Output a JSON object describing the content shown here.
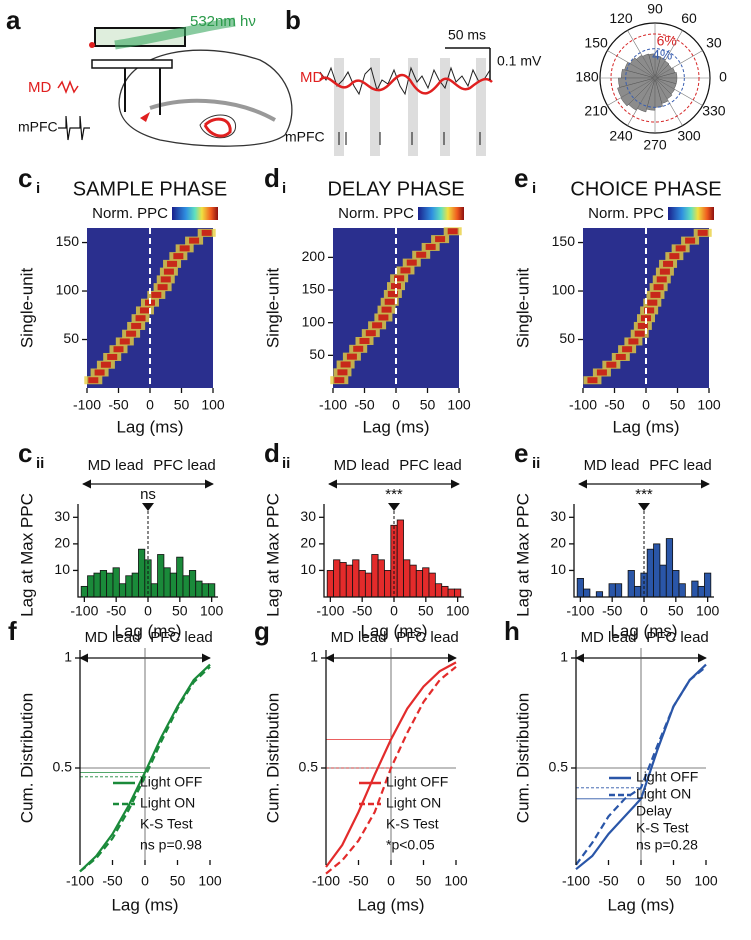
{
  "chart_data": [
    {
      "type": "schematic",
      "panel": "a",
      "light_label": "532nm hν",
      "region_labels": [
        "MD",
        "mPFC"
      ]
    },
    {
      "type": "trace",
      "panel": "b",
      "scale_x": "50 ms",
      "scale_y": "0.1 mV",
      "trace_labels": [
        "MD",
        "mPFC"
      ]
    },
    {
      "type": "polar",
      "values": [
        3.0,
        2.8,
        2.6,
        2.7,
        2.9,
        3.0,
        3.3,
        3.4,
        3.6,
        3.9,
        4.3,
        4.6,
        5.0,
        5.3,
        5.4,
        5.1,
        4.8,
        4.4,
        4.0,
        3.6,
        3.3,
        3.1,
        3.0,
        3.0
      ],
      "color": "#8c8c8c",
      "angle_ticks": [
        0,
        30,
        60,
        90,
        120,
        150,
        180,
        210,
        240,
        270,
        300,
        330
      ],
      "rlim": [
        0,
        7.5
      ],
      "rticks": [
        {
          "value": 4,
          "label": "4%"
        },
        {
          "value": 6,
          "label": "6%"
        }
      ],
      "rtick_colors": [
        "#3a5fb0",
        "#d62728"
      ]
    },
    {
      "type": "heatmap",
      "panel": "c",
      "panel_sub": "i",
      "title": "SAMPLE PHASE",
      "colorbar_label": "Norm. PPC",
      "x_label": "Lag (ms)",
      "y_label": "Single-unit",
      "xlim": [
        -100,
        100
      ],
      "xticks": [
        -100,
        -50,
        0,
        50,
        100
      ],
      "ylim": [
        0,
        165
      ],
      "yticks": [
        50,
        100,
        150
      ],
      "x": [
        -90,
        -80,
        -70,
        -60,
        -50,
        -40,
        -30,
        -22,
        -15,
        -8,
        0,
        10,
        20,
        25,
        30,
        35,
        45,
        55,
        70,
        90
      ],
      "y": [
        8,
        16,
        24,
        32,
        40,
        48,
        56,
        64,
        72,
        80,
        88,
        96,
        104,
        112,
        120,
        128,
        136,
        144,
        152,
        160
      ]
    },
    {
      "type": "heatmap",
      "panel": "d",
      "panel_sub": "i",
      "title": "DELAY PHASE",
      "colorbar_label": "Norm. PPC",
      "x_label": "Lag (ms)",
      "y_label": "Single-unit",
      "xlim": [
        -100,
        100
      ],
      "xticks": [
        -100,
        -50,
        0,
        50,
        100
      ],
      "ylim": [
        0,
        245
      ],
      "yticks": [
        50,
        100,
        150,
        200
      ],
      "x": [
        -90,
        -85,
        -80,
        -70,
        -60,
        -50,
        -40,
        -30,
        -20,
        -15,
        -10,
        -5,
        0,
        5,
        15,
        25,
        40,
        55,
        70,
        90
      ],
      "y": [
        12,
        24,
        36,
        48,
        60,
        72,
        84,
        96,
        108,
        120,
        132,
        144,
        156,
        168,
        180,
        192,
        204,
        216,
        228,
        240
      ]
    },
    {
      "type": "heatmap",
      "panel": "e",
      "panel_sub": "i",
      "title": "CHOICE PHASE",
      "colorbar_label": "Norm. PPC",
      "x_label": "Lag (ms)",
      "y_label": "Single-unit",
      "xlim": [
        -100,
        100
      ],
      "xticks": [
        -100,
        -50,
        0,
        50,
        100
      ],
      "ylim": [
        0,
        165
      ],
      "yticks": [
        50,
        100,
        150
      ],
      "x": [
        -85,
        -70,
        -55,
        -40,
        -30,
        -20,
        -10,
        -5,
        0,
        5,
        10,
        15,
        20,
        25,
        30,
        35,
        45,
        55,
        70,
        90
      ],
      "y": [
        8,
        16,
        24,
        32,
        40,
        48,
        56,
        64,
        72,
        80,
        88,
        96,
        104,
        112,
        120,
        128,
        136,
        144,
        152,
        160
      ]
    },
    {
      "type": "histogram",
      "panel": "c",
      "panel_sub": "ii",
      "left_label": "MD lead",
      "right_label": "PFC lead",
      "marker": "ns",
      "x_label": "Lag (ms)",
      "y_label": "Lag at Max PPC",
      "color": "#1a8a3a",
      "bins": [
        -105,
        -95,
        -85,
        -75,
        -65,
        -55,
        -45,
        -35,
        -25,
        -15,
        -5,
        5,
        15,
        25,
        35,
        45,
        55,
        65,
        75,
        85,
        95,
        105
      ],
      "values": [
        4,
        8,
        9,
        10,
        9,
        11,
        5,
        8,
        9,
        18,
        14,
        5,
        16,
        11,
        9,
        15,
        8,
        10,
        6,
        5,
        5
      ],
      "xlim": [
        -110,
        110
      ],
      "xticks": [
        -100,
        -50,
        0,
        50,
        100
      ],
      "ylim": [
        0,
        32
      ],
      "yticks": [
        10,
        20,
        30
      ]
    },
    {
      "type": "histogram",
      "panel": "d",
      "panel_sub": "ii",
      "left_label": "MD lead",
      "right_label": "PFC lead",
      "marker": "***",
      "x_label": "Lag (ms)",
      "y_label": "Lag at Max PPC",
      "color": "#e32b2b",
      "bins": [
        -105,
        -95,
        -85,
        -75,
        -65,
        -55,
        -45,
        -35,
        -25,
        -15,
        -5,
        5,
        15,
        25,
        35,
        45,
        55,
        65,
        75,
        85,
        95,
        105
      ],
      "values": [
        10,
        14,
        13,
        12,
        14,
        10,
        9,
        16,
        14,
        10,
        27,
        29,
        14,
        12,
        10,
        11,
        9,
        5,
        4,
        3,
        3
      ],
      "xlim": [
        -110,
        110
      ],
      "xticks": [
        -100,
        -50,
        0,
        50,
        100
      ],
      "ylim": [
        0,
        32
      ],
      "yticks": [
        10,
        20,
        30
      ]
    },
    {
      "type": "histogram",
      "panel": "e",
      "panel_sub": "ii",
      "left_label": "MD lead",
      "right_label": "PFC lead",
      "marker": "***",
      "x_label": "Lag (ms)",
      "y_label": "Lag at Max PPC",
      "color": "#2a56a8",
      "bins": [
        -105,
        -95,
        -85,
        -75,
        -65,
        -55,
        -45,
        -35,
        -25,
        -15,
        -5,
        5,
        15,
        25,
        35,
        45,
        55,
        65,
        75,
        85,
        95,
        105
      ],
      "values": [
        7,
        3,
        0,
        2,
        0,
        5,
        5,
        0,
        10,
        4,
        9,
        18,
        20,
        12,
        22,
        10,
        5,
        0,
        6,
        4,
        9
      ],
      "xlim": [
        -110,
        110
      ],
      "xticks": [
        -100,
        -50,
        0,
        50,
        100
      ],
      "ylim": [
        0,
        32
      ],
      "yticks": [
        10,
        20,
        30
      ]
    },
    {
      "type": "line",
      "panel": "f",
      "left_label": "MD lead",
      "right_label": "PFC lead",
      "x_label": "Lag (ms)",
      "y_label": "Cum. Distribution",
      "x": [
        -100,
        -75,
        -50,
        -25,
        0,
        25,
        50,
        75,
        100
      ],
      "xlim": [
        -100,
        100
      ],
      "xticks": [
        -100,
        -50,
        0,
        50,
        100
      ],
      "ylim": [
        0,
        1
      ],
      "yticks": [
        0.5,
        1
      ],
      "series": [
        {
          "name": "Light OFF",
          "color": "#1a8a3a",
          "dash": "solid",
          "values": [
            0.03,
            0.1,
            0.2,
            0.33,
            0.48,
            0.64,
            0.78,
            0.9,
            0.97
          ]
        },
        {
          "name": "Light ON",
          "color": "#1a8a3a",
          "dash": "dashed",
          "values": [
            0.03,
            0.09,
            0.18,
            0.31,
            0.46,
            0.62,
            0.77,
            0.89,
            0.96
          ]
        }
      ],
      "annotations": [
        "K-S Test",
        "ns p=0.98"
      ]
    },
    {
      "type": "line",
      "panel": "g",
      "left_label": "MD lead",
      "right_label": "PFC lead",
      "x_label": "Lag (ms)",
      "y_label": "Cum. Distribution",
      "x": [
        -100,
        -75,
        -50,
        -25,
        0,
        25,
        50,
        75,
        100
      ],
      "xlim": [
        -100,
        100
      ],
      "xticks": [
        -100,
        -50,
        0,
        50,
        100
      ],
      "ylim": [
        0,
        1
      ],
      "yticks": [
        0.5,
        1
      ],
      "series": [
        {
          "name": "Light OFF",
          "color": "#e32b2b",
          "dash": "solid",
          "values": [
            0.05,
            0.15,
            0.3,
            0.47,
            0.63,
            0.77,
            0.87,
            0.94,
            0.98
          ]
        },
        {
          "name": "Light ON",
          "color": "#e32b2b",
          "dash": "dashed",
          "values": [
            0.02,
            0.08,
            0.17,
            0.3,
            0.5,
            0.66,
            0.8,
            0.9,
            0.96
          ]
        }
      ],
      "annotations": [
        "K-S Test",
        "*p<0.05"
      ]
    },
    {
      "type": "line",
      "panel": "h",
      "left_label": "MD lead",
      "right_label": "PFC lead",
      "x_label": "Lag (ms)",
      "y_label": "Cum. Distribution",
      "x": [
        -100,
        -75,
        -50,
        -25,
        0,
        25,
        50,
        75,
        100
      ],
      "xlim": [
        -100,
        100
      ],
      "xticks": [
        -100,
        -50,
        0,
        50,
        100
      ],
      "ylim": [
        0,
        1
      ],
      "yticks": [
        0.5,
        1
      ],
      "series": [
        {
          "name": "Light OFF",
          "color": "#2a56a8",
          "dash": "solid",
          "values": [
            0.04,
            0.1,
            0.2,
            0.28,
            0.36,
            0.58,
            0.78,
            0.9,
            0.97
          ]
        },
        {
          "name": "Light ON",
          "color": "#2a56a8",
          "dash": "dashed",
          "values": [
            0.06,
            0.16,
            0.28,
            0.36,
            0.41,
            0.6,
            0.78,
            0.9,
            0.96
          ]
        }
      ],
      "annotations": [
        "Delay",
        "K-S Test",
        "ns p=0.28"
      ]
    }
  ]
}
